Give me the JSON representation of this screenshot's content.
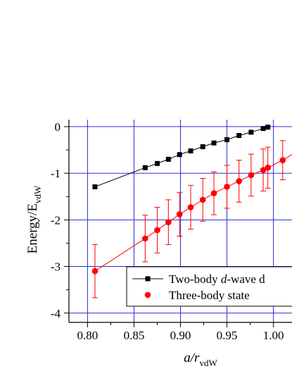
{
  "chart_data": {
    "type": "scatter",
    "xlabel": {
      "main": "a/r",
      "sub": "vdW"
    },
    "ylabel": {
      "main": "Energy/E",
      "sub": "vdW"
    },
    "xlim": [
      0.78,
      1.02
    ],
    "ylim": [
      -4.2,
      0.15
    ],
    "x_ticks": [
      "0.80",
      "0.85",
      "0.90",
      "0.95",
      "1.00",
      "1"
    ],
    "y_ticks": [
      "0",
      "-1",
      "-2",
      "-3",
      "-4"
    ],
    "grid": true,
    "legend_placement": "bottom-right",
    "series": [
      {
        "name": "Two-body d-wave d",
        "name_parts": [
          "Two-body ",
          "d",
          "-wave d"
        ],
        "color": "#000000",
        "marker": "square",
        "points": [
          {
            "x": 0.808,
            "y": -1.29
          },
          {
            "x": 0.862,
            "y": -0.88
          },
          {
            "x": 0.875,
            "y": -0.79
          },
          {
            "x": 0.887,
            "y": -0.7
          },
          {
            "x": 0.899,
            "y": -0.6
          },
          {
            "x": 0.911,
            "y": -0.52
          },
          {
            "x": 0.924,
            "y": -0.43
          },
          {
            "x": 0.936,
            "y": -0.35
          },
          {
            "x": 0.95,
            "y": -0.28
          },
          {
            "x": 0.963,
            "y": -0.19
          },
          {
            "x": 0.976,
            "y": -0.12
          },
          {
            "x": 0.989,
            "y": -0.04
          },
          {
            "x": 0.994,
            "y": -0.01
          }
        ]
      },
      {
        "name": "Three-body state",
        "color": "#ff0000",
        "marker": "circle",
        "points": [
          {
            "x": 0.808,
            "y": -3.1,
            "err": 0.57
          },
          {
            "x": 0.862,
            "y": -2.4,
            "err": 0.5
          },
          {
            "x": 0.875,
            "y": -2.22,
            "err": 0.49
          },
          {
            "x": 0.887,
            "y": -2.05,
            "err": 0.48
          },
          {
            "x": 0.899,
            "y": -1.88,
            "err": 0.47
          },
          {
            "x": 0.911,
            "y": -1.73,
            "err": 0.47
          },
          {
            "x": 0.924,
            "y": -1.57,
            "err": 0.46
          },
          {
            "x": 0.936,
            "y": -1.43,
            "err": 0.46
          },
          {
            "x": 0.95,
            "y": -1.29,
            "err": 0.46
          },
          {
            "x": 0.963,
            "y": -1.17,
            "err": 0.45
          },
          {
            "x": 0.976,
            "y": -1.04,
            "err": 0.45
          },
          {
            "x": 0.989,
            "y": -0.93,
            "err": 0.45
          },
          {
            "x": 0.994,
            "y": -0.88,
            "err": 0.44
          },
          {
            "x": 1.01,
            "y": -0.72,
            "err": 0.42
          }
        ],
        "fit_line_to": {
          "x": 1.04,
          "y": -0.35
        }
      }
    ]
  }
}
